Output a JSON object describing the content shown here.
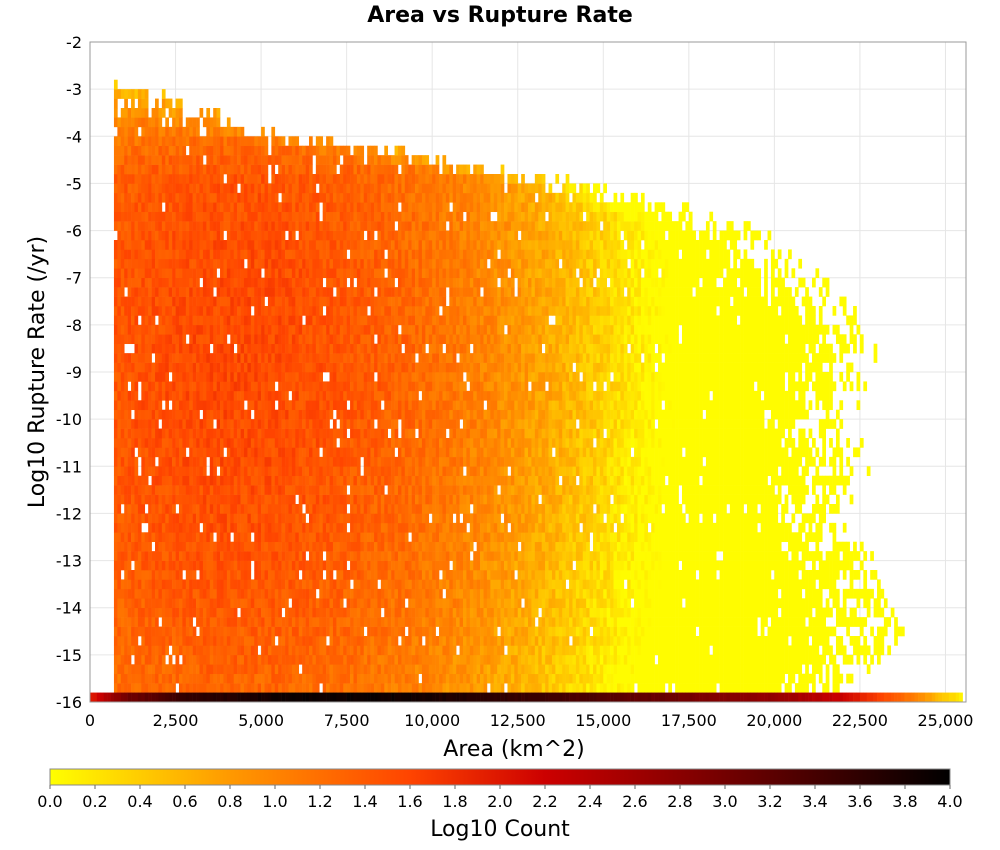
{
  "chart_data": {
    "type": "heatmap",
    "title": "Area vs Rupture Rate",
    "xlabel": "Area (km^2)",
    "ylabel": "Log10 Rupture Rate (/yr)",
    "xlim": [
      0,
      25600
    ],
    "ylim": [
      -16,
      -2
    ],
    "x_ticks": [
      "0",
      "2,500",
      "5,000",
      "7,500",
      "10,000",
      "12,500",
      "15,000",
      "17,500",
      "20,000",
      "22,500",
      "25,000"
    ],
    "x_tick_values": [
      0,
      2500,
      5000,
      7500,
      10000,
      12500,
      15000,
      17500,
      20000,
      22500,
      25000
    ],
    "y_ticks": [
      "-2",
      "-3",
      "-4",
      "-5",
      "-6",
      "-7",
      "-8",
      "-9",
      "-10",
      "-11",
      "-12",
      "-13",
      "-14",
      "-15",
      "-16"
    ],
    "y_tick_values": [
      -2,
      -3,
      -4,
      -5,
      -6,
      -7,
      -8,
      -9,
      -10,
      -11,
      -12,
      -13,
      -14,
      -15,
      -16
    ],
    "grid": true,
    "colorbar": {
      "label": "Log10 Count",
      "range": [
        0.0,
        4.0
      ],
      "ticks": [
        "0.0",
        "0.2",
        "0.4",
        "0.6",
        "0.8",
        "1.0",
        "1.2",
        "1.4",
        "1.6",
        "1.8",
        "2.0",
        "2.2",
        "2.4",
        "2.6",
        "2.8",
        "3.0",
        "3.2",
        "3.4",
        "3.6",
        "3.8",
        "4.0"
      ],
      "tick_values": [
        0.0,
        0.2,
        0.4,
        0.6,
        0.8,
        1.0,
        1.2,
        1.4,
        1.6,
        1.8,
        2.0,
        2.2,
        2.4,
        2.6,
        2.8,
        3.0,
        3.2,
        3.4,
        3.6,
        3.8,
        4.0
      ],
      "colors": [
        "#ffff00",
        "#ff9900",
        "#ff4400",
        "#cc0000",
        "#660000",
        "#000000"
      ],
      "placement": "bottom"
    },
    "bin_size": {
      "x_km2": 100,
      "y_log10": 0.2
    },
    "zero_rate_row": {
      "y": -16,
      "x_range": [
        0,
        25500
      ],
      "log10_count_profile": [
        {
          "x": 0,
          "v": 1.9
        },
        {
          "x": 1000,
          "v": 3.0
        },
        {
          "x": 3000,
          "v": 3.6
        },
        {
          "x": 6000,
          "v": 3.9
        },
        {
          "x": 9000,
          "v": 3.9
        },
        {
          "x": 12000,
          "v": 3.6
        },
        {
          "x": 15000,
          "v": 3.3
        },
        {
          "x": 17500,
          "v": 3.0
        },
        {
          "x": 20000,
          "v": 2.7
        },
        {
          "x": 22000,
          "v": 2.2
        },
        {
          "x": 23500,
          "v": 1.4
        },
        {
          "x": 25500,
          "v": 0.1
        }
      ]
    },
    "density_model": {
      "description": "Log10 count of ruptures per (area, log10 rate) bin; estimated",
      "min_area": 700,
      "max_area_by_rate": [
        {
          "y": -3,
          "x": 1300
        },
        {
          "y": -4,
          "x": 5500
        },
        {
          "y": -5,
          "x": 14000
        },
        {
          "y": -6,
          "x": 19200
        },
        {
          "y": -7,
          "x": 20800
        },
        {
          "y": -8,
          "x": 22500
        },
        {
          "y": -9,
          "x": 22600
        },
        {
          "y": -10,
          "x": 22000
        },
        {
          "y": -11,
          "x": 22500
        },
        {
          "y": -12,
          "x": 21800
        },
        {
          "y": -13,
          "x": 22600
        },
        {
          "y": -14,
          "x": 23500
        },
        {
          "y": -15,
          "x": 23500
        },
        {
          "y": -16,
          "x": 21500
        }
      ],
      "peak_log10_count": 1.55,
      "peak_area": 4000,
      "peak_rate": -9
    }
  }
}
